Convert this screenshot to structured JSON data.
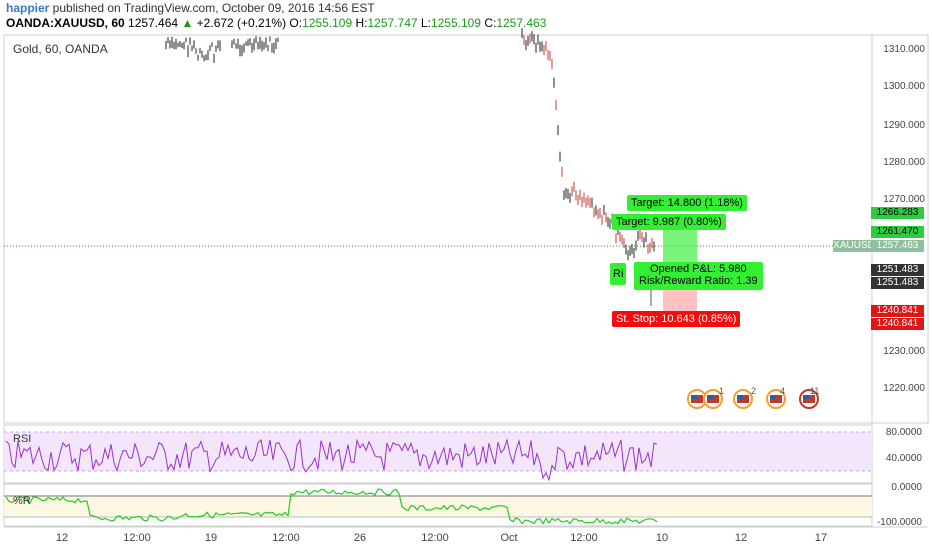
{
  "header": {
    "author": "happier",
    "published_text": " published on TradingView.com, October 09, 2016 14:56 EST"
  },
  "ohlc": {
    "symbol": "OANDA:XAUUSD, 60",
    "last": "1257.464",
    "change": "+2.672 (+0.21%)",
    "open_label": "O:",
    "open": "1255.109",
    "high_label": "H:",
    "high": "1257.747",
    "low_label": "L:",
    "low": "1255.109",
    "close_label": "C:",
    "close": "1257.463"
  },
  "chart": {
    "title": "Gold, 60, OANDA",
    "price_levels": [
      "1310.000",
      "1300.000",
      "1290.000",
      "1280.000",
      "1270.000",
      "1230.000",
      "1220.000"
    ],
    "tags": {
      "target_high": "1266.283",
      "target_mid": "1261.470",
      "symbol": "XAUUSD",
      "current": "1257.463",
      "entry1": "1251.483",
      "entry2": "1251.483",
      "stop1": "1240.841",
      "stop2": "1240.841"
    },
    "position": {
      "target1": "Target: 14.800 (1.18%)",
      "target2": "Target: 9.987 (0.80%)",
      "pnl": "Opened P&L: 5.980",
      "ratio": "Risk/Reward Ratio: 1.39",
      "risk_prefix": "Ri",
      "stop": "St. Stop: 10.643 (0.85%)"
    },
    "events": [
      "1",
      "2",
      "4",
      "11"
    ]
  },
  "rsi": {
    "label": "RSI",
    "levels": [
      "80.0000",
      "40.0000"
    ]
  },
  "r_indicator": {
    "label": "%R",
    "levels": [
      "0.0000",
      "-100.0000"
    ]
  },
  "x_axis": [
    "12",
    "12:00",
    "19",
    "12:00",
    "26",
    "12:00",
    "Oct",
    "12:00",
    "10",
    "12",
    "17"
  ],
  "colors": {
    "bull": "#1a9a1a",
    "target_green": "#33ee33",
    "stop_red": "#f50d0d",
    "rsi_line": "#9b30c8",
    "r_line": "#22cc22"
  }
}
